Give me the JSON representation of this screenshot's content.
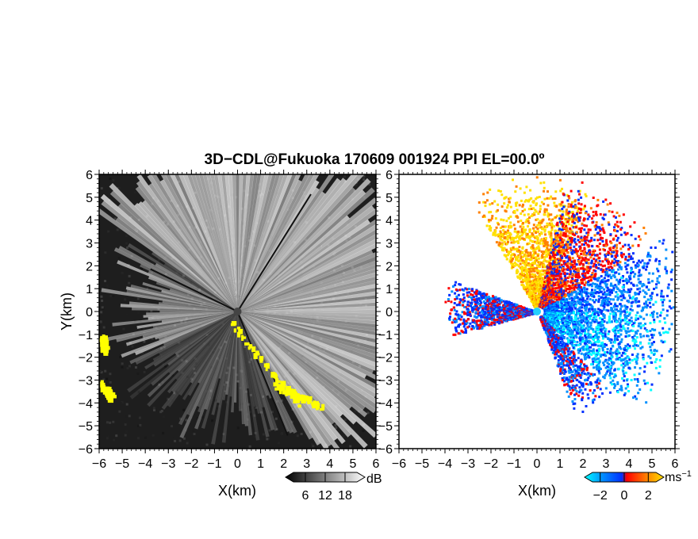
{
  "chart_data": [
    {
      "type": "heatmap",
      "panel": "left",
      "title": "3D−CDL@Fukuoka 170609 001924 PPI EL=00.0º",
      "xlabel": "X(km)",
      "ylabel": "Y(km)",
      "xlim": [
        -6,
        6
      ],
      "ylim": [
        -6,
        6
      ],
      "x_ticks": [
        "−6",
        "−5",
        "−4",
        "−3",
        "−2",
        "−1",
        "0",
        "1",
        "2",
        "3",
        "4",
        "5",
        "6"
      ],
      "y_ticks": [
        "−6",
        "−5",
        "−4",
        "−3",
        "−2",
        "−1",
        "0",
        "1",
        "2",
        "3",
        "4",
        "5",
        "6"
      ],
      "colorbar": {
        "unit": "dB",
        "ticks": [
          "6",
          "12",
          "18"
        ],
        "tick_values": [
          6,
          12,
          18
        ],
        "range": [
          0,
          24
        ],
        "colormap": "grayscale"
      },
      "highlight_color": "#ffff00",
      "highlight_regions": [
        {
          "x": [
            -0.3,
            2.7
          ],
          "y": [
            -0.5,
            -4.1
          ]
        },
        {
          "x": [
            1.6,
            3.6
          ],
          "y": [
            -3.2,
            -4.1
          ]
        },
        {
          "x": [
            -5.9,
            -5.5
          ],
          "y": [
            -3.1,
            -3.8
          ]
        },
        {
          "x": [
            -5.9,
            -5.8
          ],
          "y": [
            -1.1,
            -1.6
          ]
        }
      ]
    },
    {
      "type": "heatmap",
      "panel": "right",
      "xlabel": "X(km)",
      "xlim": [
        -6,
        6
      ],
      "ylim": [
        -6,
        6
      ],
      "x_ticks": [
        "−6",
        "−5",
        "−4",
        "−3",
        "−2",
        "−1",
        "0",
        "1",
        "2",
        "3",
        "4",
        "5",
        "6"
      ],
      "y_ticks": [
        "−6",
        "−5",
        "−4",
        "−3",
        "−2",
        "−1",
        "0",
        "1",
        "2",
        "3",
        "4",
        "5",
        "6"
      ],
      "colorbar": {
        "unit": "ms",
        "unit_exponent": "−1",
        "ticks": [
          "−2",
          "0",
          "2"
        ],
        "tick_values": [
          -2,
          0,
          2
        ],
        "range": [
          -3.3,
          3.3
        ],
        "colormap": [
          "#00ffff",
          "#0090ff",
          "#0030ff",
          "#ff0000",
          "#ff8000",
          "#ffe000"
        ]
      },
      "sectors": [
        {
          "az_deg": [
            330,
            385
          ],
          "value": 2.5,
          "range_km": 5.3
        },
        {
          "az_deg": [
            12,
            60
          ],
          "value": 0.5,
          "range_km": 5.4
        },
        {
          "az_deg": [
            60,
            90
          ],
          "value": -1.2,
          "range_km": 6.0
        },
        {
          "az_deg": [
            90,
            135
          ],
          "value": -1.8,
          "range_km": 5.6
        },
        {
          "az_deg": [
            138,
            160
          ],
          "value": -0.6,
          "range_km": 4.3
        },
        {
          "az_deg": [
            255,
            290
          ],
          "value": -0.4,
          "range_km": 3.7
        }
      ]
    }
  ]
}
